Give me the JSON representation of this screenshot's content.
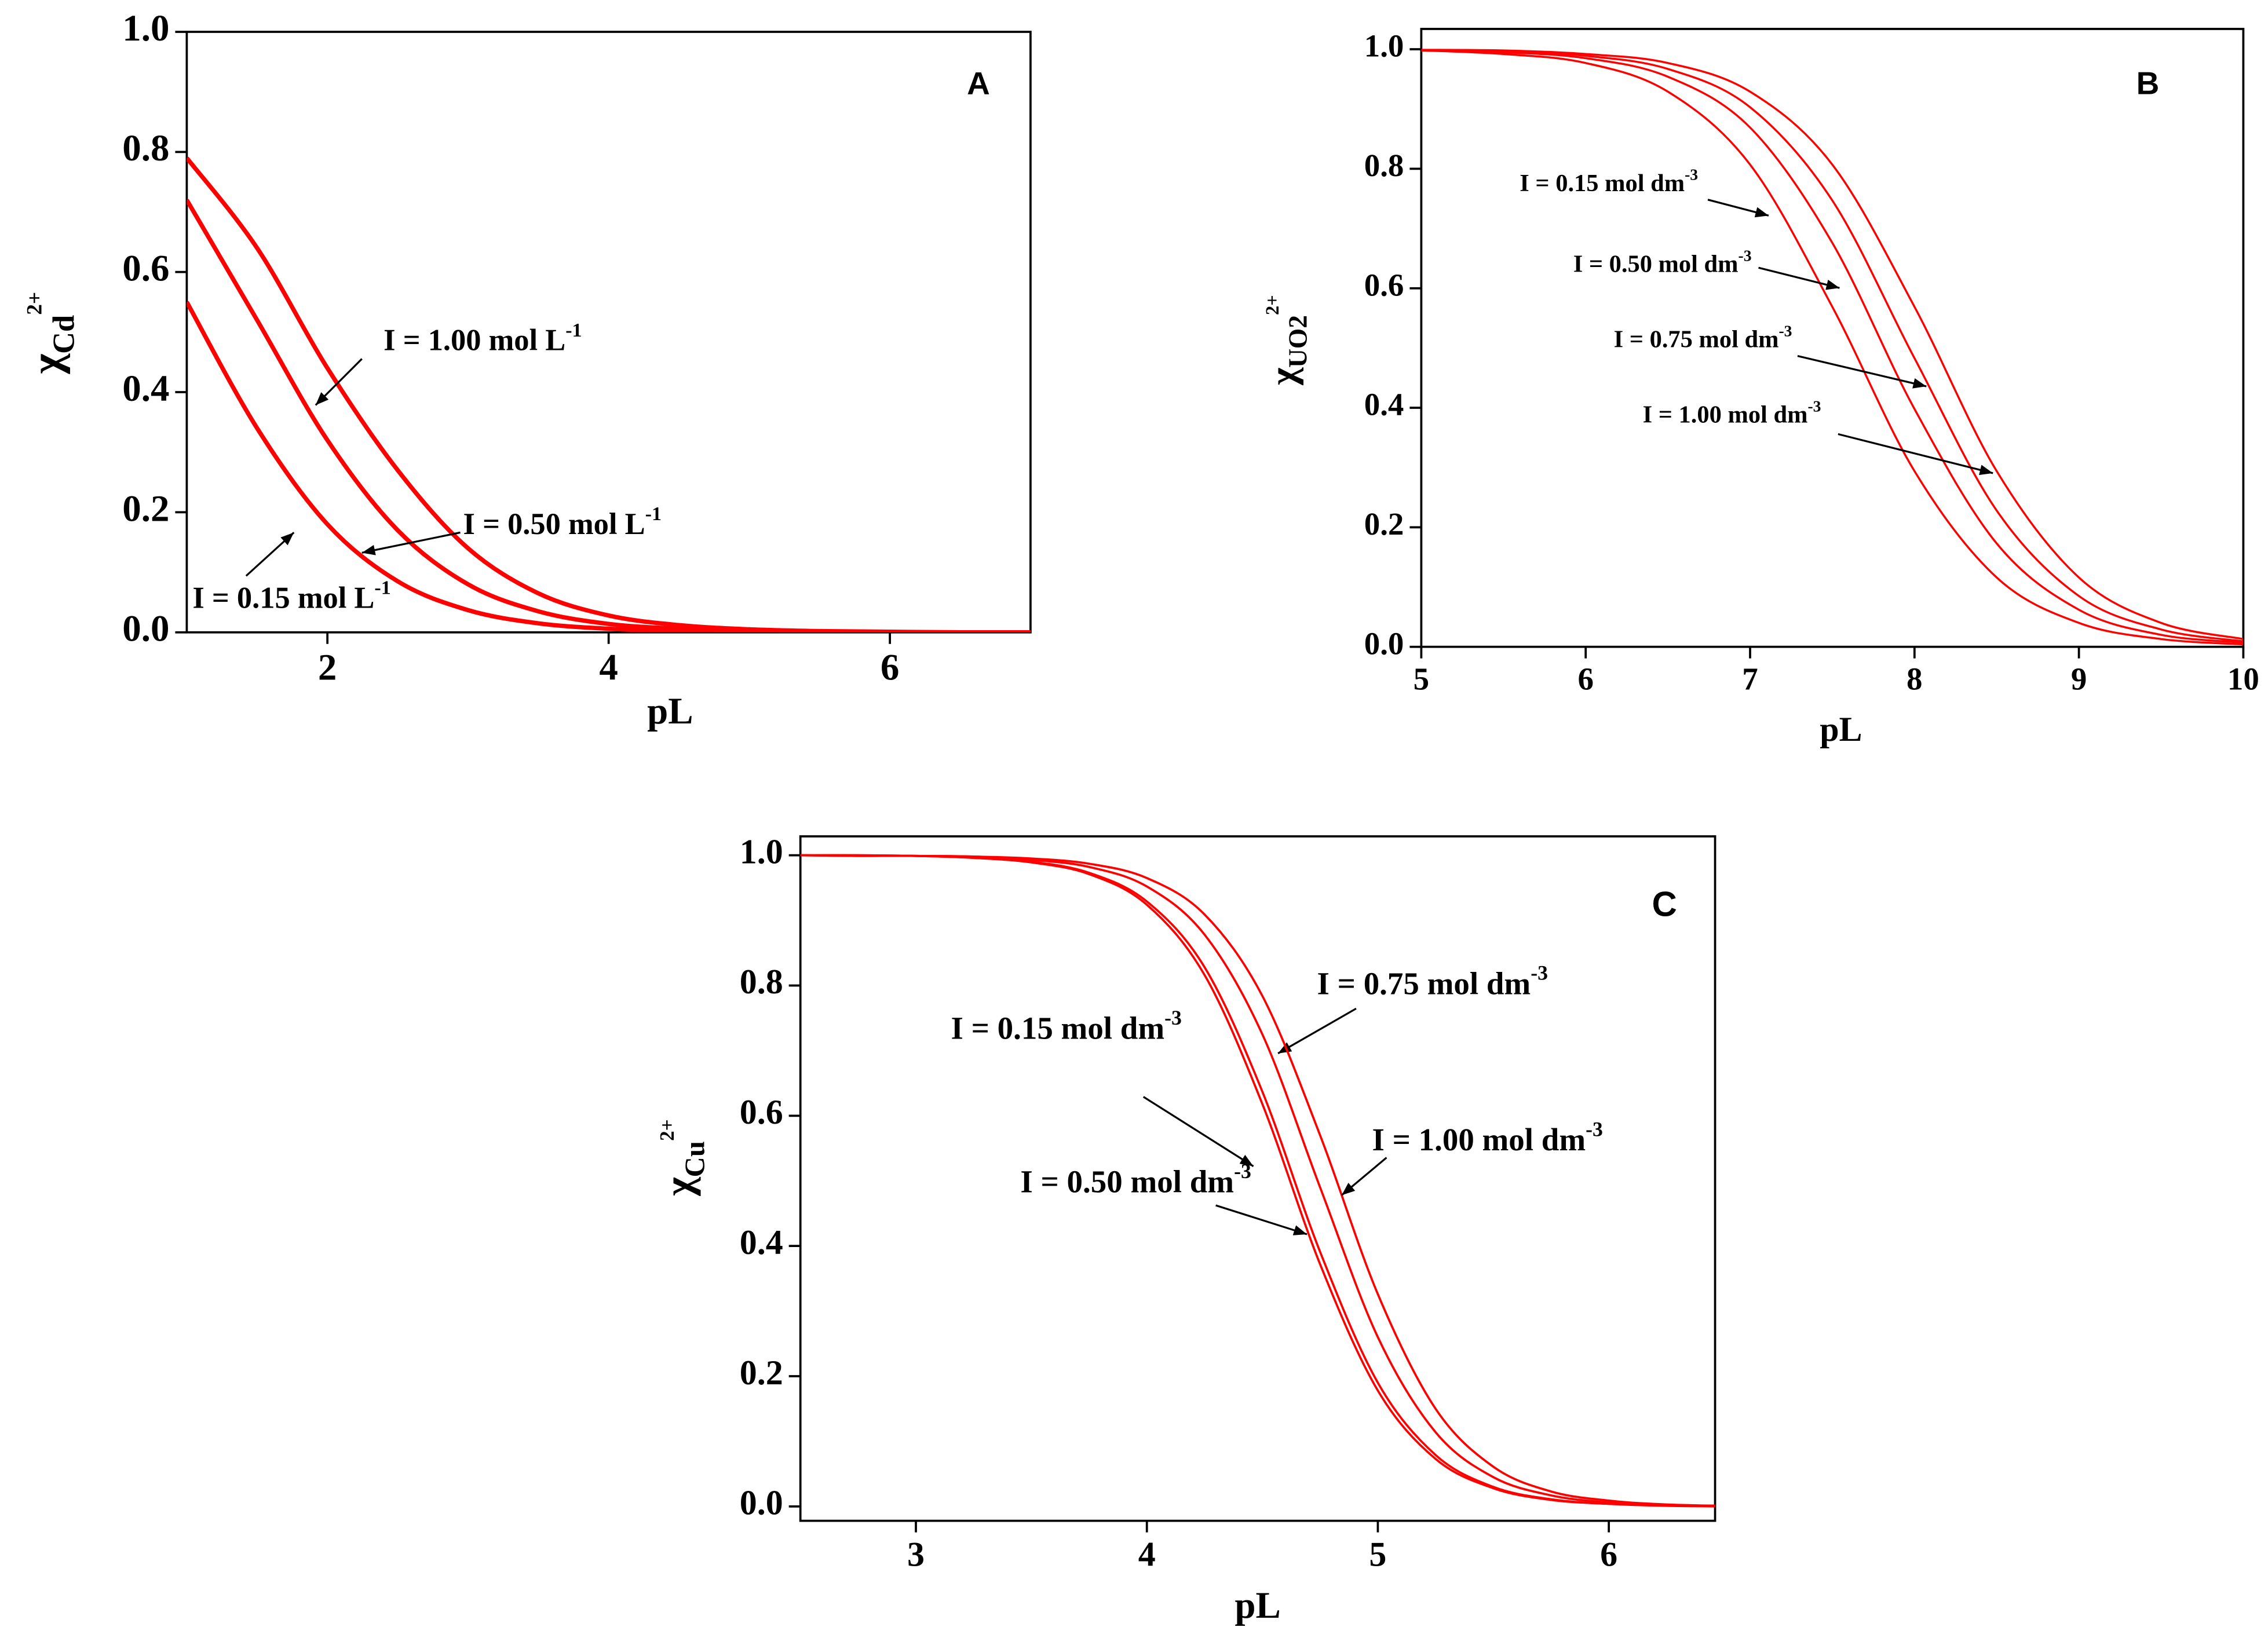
{
  "chart_data": [
    {
      "type": "line",
      "panel": "A",
      "xlabel": "pL",
      "ylabel": {
        "symbol": "χ",
        "sub": "Cd",
        "sup": "2+"
      },
      "xlim": [
        1,
        7
      ],
      "ylim": [
        0,
        1
      ],
      "xticks": [
        2,
        4,
        6
      ],
      "yticks": [
        {
          "value": 0,
          "label": "0.0"
        },
        0.2,
        0.4,
        0.6,
        0.8,
        {
          "value": 1,
          "label": "1.0"
        }
      ],
      "x": [
        1,
        1.5,
        2,
        2.5,
        3,
        3.5,
        4,
        4.5,
        5,
        5.5,
        6,
        6.5,
        7
      ],
      "series": [
        {
          "name": "I = 1.00 mol L",
          "name_sup": "-1",
          "color": "#ff0000",
          "values": [
            0.79,
            0.64,
            0.44,
            0.27,
            0.14,
            0.065,
            0.028,
            0.012,
            0.005,
            0.002,
            0.001,
            0,
            0
          ]
        },
        {
          "name": "I = 0.50 mol L",
          "name_sup": "-1",
          "color": "#ff0000",
          "values": [
            0.72,
            0.52,
            0.32,
            0.17,
            0.08,
            0.035,
            0.014,
            0.006,
            0.002,
            0.001,
            0,
            0,
            0
          ]
        },
        {
          "name": "I = 0.15 mol L",
          "name_sup": "-1",
          "color": "#ff0000",
          "values": [
            0.55,
            0.34,
            0.18,
            0.085,
            0.037,
            0.015,
            0.006,
            0.002,
            0.001,
            0,
            0,
            0,
            0
          ]
        }
      ]
    },
    {
      "type": "line",
      "panel": "B",
      "xlabel": "pL",
      "ylabel": {
        "symbol": "χ",
        "sub": "UO2",
        "sup": "2+"
      },
      "xlim": [
        5,
        10
      ],
      "ylim": [
        0,
        1.034
      ],
      "xticks": [
        5,
        6,
        7,
        8,
        9,
        10
      ],
      "yticks": [
        {
          "value": 0,
          "label": "0.0"
        },
        0.2,
        0.4,
        0.6,
        0.8,
        {
          "value": 1,
          "label": "1.0"
        }
      ],
      "x": [
        5,
        5.5,
        6,
        6.5,
        7,
        7.5,
        8,
        8.5,
        9,
        9.5,
        10
      ],
      "series": [
        {
          "name": "I = 0.15 mol dm",
          "name_sup": "-3",
          "color": "#ff0000",
          "values": [
            0.998,
            0.992,
            0.977,
            0.929,
            0.807,
            0.569,
            0.294,
            0.116,
            0.04,
            0.013,
            0.004
          ]
        },
        {
          "name": "I = 0.50 mol dm",
          "name_sup": "-3",
          "color": "#ff0000",
          "values": [
            0.998,
            0.995,
            0.985,
            0.954,
            0.869,
            0.676,
            0.398,
            0.173,
            0.062,
            0.02,
            0.007
          ]
        },
        {
          "name": "I = 0.75 mol dm",
          "name_sup": "-3",
          "color": "#ff0000",
          "values": [
            0.999,
            0.997,
            0.989,
            0.967,
            0.903,
            0.747,
            0.483,
            0.228,
            0.085,
            0.029,
            0.009
          ]
        },
        {
          "name": "I = 1.00 mol dm",
          "name_sup": "-3",
          "color": "#ff0000",
          "values": [
            0.999,
            0.998,
            0.992,
            0.977,
            0.929,
            0.807,
            0.569,
            0.294,
            0.116,
            0.04,
            0.013
          ]
        }
      ]
    },
    {
      "type": "line",
      "panel": "C",
      "xlabel": "pL",
      "ylabel": {
        "symbol": "χ",
        "sub": "Cu",
        "sup": "2+"
      },
      "xlim": [
        2.5,
        6.46
      ],
      "ylim": [
        -0.022,
        1.029
      ],
      "xticks": [
        3,
        4,
        5,
        6
      ],
      "yticks": [
        {
          "value": 0,
          "label": "0.0"
        },
        0.2,
        0.4,
        0.6,
        0.8,
        {
          "value": 1,
          "label": "1.0"
        }
      ],
      "x": [
        2.5,
        2.75,
        3,
        3.25,
        3.5,
        3.75,
        4,
        4.25,
        4.5,
        4.75,
        5,
        5.25,
        5.5,
        5.75,
        6,
        6.25,
        6.5
      ],
      "series": [
        {
          "name": "I = 0.15 mol dm",
          "name_sup": "-3",
          "color": "#ff0000",
          "values": [
            1,
            0.999,
            0.999,
            0.996,
            0.989,
            0.971,
            0.924,
            0.816,
            0.618,
            0.372,
            0.178,
            0.073,
            0.028,
            0.01,
            0.004,
            0.001,
            0
          ]
        },
        {
          "name": "I = 0.50 mol dm",
          "name_sup": "-3",
          "color": "#ff0000",
          "values": [
            1,
            0.999,
            0.999,
            0.996,
            0.99,
            0.973,
            0.929,
            0.828,
            0.637,
            0.391,
            0.19,
            0.079,
            0.03,
            0.011,
            0.004,
            0.002,
            0.001
          ]
        },
        {
          "name": "I = 0.75 mol dm",
          "name_sup": "-3",
          "color": "#ff0000",
          "values": [
            1,
            1,
            0.999,
            0.998,
            0.993,
            0.982,
            0.952,
            0.878,
            0.725,
            0.49,
            0.26,
            0.114,
            0.045,
            0.017,
            0.006,
            0.002,
            0.001
          ]
        },
        {
          "name": "I = 1.00 mol dm",
          "name_sup": "-3",
          "color": "#ff0000",
          "values": [
            1,
            1,
            0.999,
            0.998,
            0.995,
            0.987,
            0.965,
            0.909,
            0.784,
            0.57,
            0.326,
            0.15,
            0.061,
            0.023,
            0.009,
            0.003,
            0.001
          ]
        }
      ]
    }
  ]
}
